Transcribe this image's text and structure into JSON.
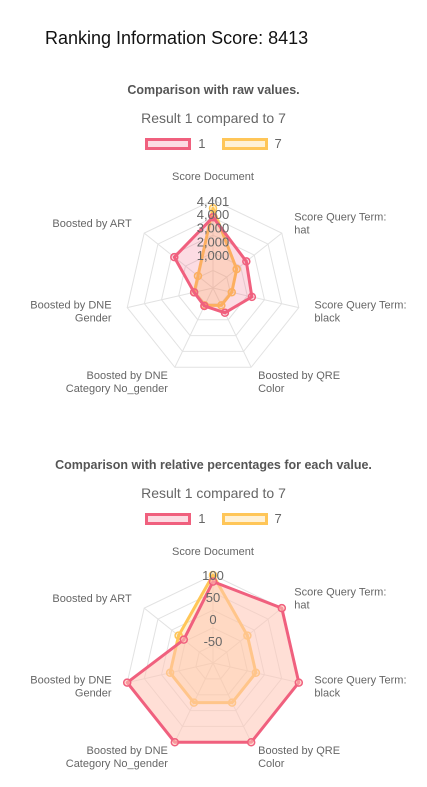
{
  "page": {
    "title": "Ranking Information Score: 8413"
  },
  "chart_data": [
    {
      "type": "radar",
      "title": "Comparison with raw values.",
      "subtitle": "Result 1 compared to 7",
      "axes": [
        "Score Document",
        "Score Query Term: hat",
        "Score Query Term: black",
        "Boosted by QRE Color",
        "Boosted by DNE Category No_gender",
        "Boosted by DNE Gender",
        "Boosted by ART"
      ],
      "axis_label_lines": [
        [
          "Score Document"
        ],
        [
          "Score Query Term:",
          "hat"
        ],
        [
          "Score Query Term:",
          "black"
        ],
        [
          "Boosted by QRE",
          "Color"
        ],
        [
          "Boosted by DNE",
          "Category No_gender"
        ],
        [
          "Boosted by DNE",
          "Gender"
        ],
        [
          "Boosted by ART"
        ]
      ],
      "r_range": [
        -1400,
        5000
      ],
      "ticks": [
        1000,
        2000,
        3000,
        4000
      ],
      "tick_labels": [
        "1,000",
        "2,000",
        "3,000",
        "4,000"
      ],
      "extra_label": "4,401",
      "series": [
        {
          "name": "1",
          "values": [
            3750,
            1700,
            1500,
            600,
            50,
            10,
            2200
          ],
          "stroke": "#f0607e",
          "fill": "rgba(240,96,126,0.22)"
        },
        {
          "name": "7",
          "values": [
            4401,
            800,
            0,
            0,
            0,
            0,
            0
          ],
          "stroke": "#ffc658",
          "fill": "rgba(255,198,88,0.25)"
        }
      ]
    },
    {
      "type": "radar",
      "title": "Comparison with relative percentages for each value.",
      "subtitle": "Result 1 compared to 7",
      "axes": [
        "Score Document",
        "Score Query Term: hat",
        "Score Query Term: black",
        "Boosted by QRE Color",
        "Boosted by DNE Category No_gender",
        "Boosted by DNE Gender",
        "Boosted by ART"
      ],
      "axis_label_lines": [
        [
          "Score Document"
        ],
        [
          "Score Query Term:",
          "hat"
        ],
        [
          "Score Query Term:",
          "black"
        ],
        [
          "Boosted by QRE",
          "Color"
        ],
        [
          "Boosted by DNE",
          "Category No_gender"
        ],
        [
          "Boosted by DNE",
          "Gender"
        ],
        [
          "Boosted by ART"
        ]
      ],
      "r_range": [
        -100,
        100
      ],
      "ticks": [
        -50,
        0,
        50,
        100
      ],
      "tick_labels": [
        "-50",
        "0",
        "50",
        "100"
      ],
      "series": [
        {
          "name": "1",
          "values": [
            85,
            100,
            100,
            100,
            100,
            100,
            -15
          ],
          "stroke": "#f0607e",
          "fill": "rgba(255,196,180,0.55)"
        },
        {
          "name": "7",
          "values": [
            100,
            0,
            0,
            0,
            0,
            0,
            0
          ],
          "stroke": "#ffc658",
          "fill": "rgba(255,198,88,0.25)"
        }
      ]
    }
  ]
}
